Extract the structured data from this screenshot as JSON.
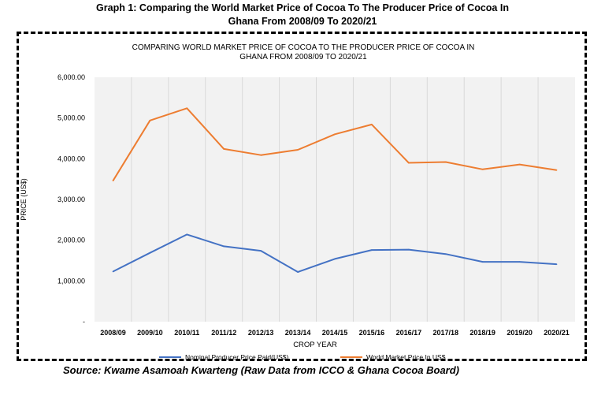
{
  "caption": {
    "line1": "Graph 1:  Comparing the World Market Price of Cocoa To The Producer Price of Cocoa In",
    "line2": "Ghana From 2008/09 To 2020/21"
  },
  "source": "Source: Kwame Asamoah Kwarteng (Raw Data from ICCO & Ghana Cocoa Board)",
  "chart_data": {
    "type": "line",
    "title_lines": [
      "COMPARING WORLD MARKET PRICE OF COCOA TO THE PRODUCER PRICE OF COCOA IN",
      "GHANA FROM 2008/09 TO 2020/21"
    ],
    "xlabel": "CROP YEAR",
    "ylabel": "PRICE (US$)",
    "ylim": [
      0,
      6000
    ],
    "y_ticks": [
      0,
      1000,
      2000,
      3000,
      4000,
      5000,
      6000
    ],
    "y_tick_labels": [
      "-",
      "1,000.00",
      "2,000.00",
      "3,000.00",
      "4,000.00",
      "5,000.00",
      "6,000.00"
    ],
    "grid": "vertical",
    "legend_position": "bottom",
    "categories": [
      "2008/09",
      "2009/10",
      "2010/11",
      "2011/12",
      "2012/13",
      "2013/14",
      "2014/15",
      "2015/16",
      "2016/17",
      "2017/18",
      "2018/19",
      "2019/20",
      "2020/21"
    ],
    "series": [
      {
        "name": "Nominal Producer Price Paid(US$)",
        "color": "#4472c4",
        "values": [
          1230,
          1690,
          2140,
          1850,
          1740,
          1220,
          1540,
          1760,
          1770,
          1660,
          1470,
          1470,
          1410
        ]
      },
      {
        "name": "World Market Price In US$",
        "color": "#ed7d31",
        "values": [
          3460,
          4940,
          5240,
          4240,
          4090,
          4220,
          4600,
          4840,
          3900,
          3920,
          3740,
          3860,
          3720
        ]
      }
    ]
  }
}
